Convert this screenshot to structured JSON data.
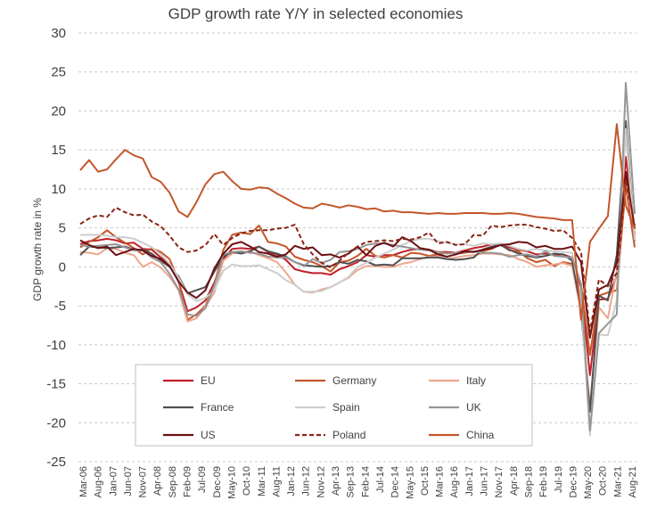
{
  "chart_data": {
    "type": "line",
    "title": "GDP growth rate Y/Y in selected economies",
    "xlabel": "",
    "ylabel": "GDP growth rate in %",
    "ylim": [
      -25,
      30
    ],
    "yticks": [
      30,
      25,
      20,
      15,
      10,
      5,
      0,
      -5,
      -10,
      -15,
      -20,
      -25
    ],
    "grid": "horizontal dashed",
    "legend_position": "bottom-center inside plot, 3 columns",
    "x": [
      "Mar-06",
      "Jun-06",
      "Sep-06",
      "Dec-06",
      "Mar-07",
      "Jun-07",
      "Sep-07",
      "Dec-07",
      "Mar-08",
      "Jun-08",
      "Sep-08",
      "Dec-08",
      "Mar-09",
      "Jun-09",
      "Sep-09",
      "Dec-09",
      "Mar-10",
      "Jun-10",
      "Sep-10",
      "Dec-10",
      "Mar-11",
      "Jun-11",
      "Sep-11",
      "Dec-11",
      "Mar-12",
      "Jun-12",
      "Sep-12",
      "Dec-12",
      "Mar-13",
      "Jun-13",
      "Sep-13",
      "Dec-13",
      "Mar-14",
      "Jun-14",
      "Sep-14",
      "Dec-14",
      "Mar-15",
      "Jun-15",
      "Sep-15",
      "Dec-15",
      "Mar-16",
      "Jun-16",
      "Sep-16",
      "Dec-16",
      "Mar-17",
      "Jun-17",
      "Sep-17",
      "Dec-17",
      "Mar-18",
      "Jun-18",
      "Sep-18",
      "Dec-18",
      "Mar-19",
      "Jun-19",
      "Sep-19",
      "Dec-19",
      "Mar-20",
      "Jun-20",
      "Sep-20",
      "Dec-20",
      "Mar-21",
      "Jun-21",
      "Sep-21"
    ],
    "x_tick_labels": [
      "Mar-06",
      "Aug-06",
      "Jan-07",
      "Jun-07",
      "Nov-07",
      "Apr-08",
      "Sep-08",
      "Feb-09",
      "Jul-09",
      "Dec-09",
      "May-10",
      "Oct-10",
      "Mar-11",
      "Aug-11",
      "Jan-12",
      "Jun-12",
      "Nov-12",
      "Apr-13",
      "Sep-13",
      "Feb-14",
      "Jul-14",
      "Dec-14",
      "May-15",
      "Oct-15",
      "Mar-16",
      "Aug-16",
      "Jan-17",
      "Jun-17",
      "Nov-17",
      "Apr-18",
      "Sep-18",
      "Feb-19",
      "Jul-19",
      "Dec-19",
      "May-20",
      "Oct-20",
      "Mar-21",
      "Aug-21"
    ],
    "series": [
      {
        "name": "EU",
        "color": "#c0202a",
        "dash": "solid",
        "values": [
          2.9,
          3.3,
          3.4,
          3.6,
          3.4,
          3.0,
          3.1,
          2.3,
          2.2,
          1.2,
          0.4,
          -1.9,
          -5.7,
          -5.2,
          -4.3,
          -2.0,
          1.0,
          2.3,
          2.4,
          2.3,
          2.6,
          1.9,
          1.6,
          0.9,
          -0.3,
          -0.6,
          -0.8,
          -0.8,
          -1.0,
          -0.3,
          0.1,
          0.6,
          1.5,
          1.3,
          1.5,
          1.5,
          1.9,
          2.2,
          2.3,
          2.2,
          1.9,
          1.9,
          1.8,
          2.1,
          2.4,
          2.6,
          2.9,
          2.9,
          2.5,
          2.2,
          2.0,
          1.6,
          1.7,
          1.5,
          1.6,
          1.2,
          -2.6,
          -13.9,
          -4.2,
          -4.1,
          -1.1,
          14.1,
          4.1
        ]
      },
      {
        "name": "Germany",
        "color": "#c5562a",
        "dash": "solid",
        "values": [
          2.5,
          3.2,
          3.8,
          4.7,
          3.8,
          3.1,
          2.4,
          1.6,
          2.4,
          1.9,
          1.0,
          -1.8,
          -6.8,
          -6.1,
          -5.0,
          -2.3,
          2.2,
          4.1,
          4.4,
          4.2,
          5.3,
          3.2,
          3.0,
          2.6,
          1.3,
          0.9,
          0.6,
          0.1,
          -0.6,
          0.6,
          0.8,
          1.4,
          2.3,
          1.4,
          1.2,
          1.5,
          1.2,
          1.8,
          1.7,
          1.4,
          1.6,
          1.8,
          1.7,
          1.8,
          2.0,
          2.0,
          2.3,
          2.9,
          2.1,
          2.0,
          1.1,
          0.6,
          0.9,
          0.1,
          0.6,
          0.4,
          -2.2,
          -11.3,
          -3.7,
          -3.3,
          -3.0,
          10.4,
          2.5
        ]
      },
      {
        "name": "Italy",
        "color": "#efa58d",
        "dash": "solid",
        "values": [
          1.9,
          1.8,
          1.6,
          2.4,
          2.3,
          1.8,
          1.5,
          0.0,
          0.6,
          -0.1,
          -1.3,
          -3.0,
          -7.0,
          -6.6,
          -5.1,
          -3.3,
          0.8,
          1.7,
          1.9,
          2.0,
          1.5,
          1.1,
          0.6,
          -0.7,
          -2.3,
          -3.2,
          -3.3,
          -2.9,
          -2.6,
          -2.0,
          -1.4,
          -0.4,
          0.1,
          0.1,
          0.0,
          0.0,
          0.4,
          0.6,
          1.0,
          1.3,
          1.3,
          1.0,
          1.2,
          1.4,
          1.5,
          1.7,
          1.7,
          1.6,
          1.5,
          1.0,
          0.6,
          0.0,
          0.2,
          0.3,
          0.5,
          0.1,
          -5.7,
          -17.9,
          -5.2,
          -6.6,
          -0.6,
          17.2,
          3.9
        ]
      },
      {
        "name": "France",
        "color": "#505050",
        "dash": "solid",
        "values": [
          1.5,
          2.6,
          2.5,
          2.4,
          2.5,
          2.6,
          2.2,
          2.2,
          1.7,
          0.8,
          0.0,
          -1.2,
          -3.4,
          -3.0,
          -2.6,
          -0.6,
          1.3,
          1.9,
          1.7,
          2.0,
          2.6,
          2.0,
          1.7,
          1.3,
          0.6,
          0.2,
          0.1,
          0.0,
          0.1,
          0.6,
          0.4,
          0.9,
          0.7,
          0.2,
          0.3,
          0.2,
          1.1,
          1.1,
          1.1,
          1.2,
          1.2,
          1.0,
          0.9,
          1.0,
          1.2,
          2.2,
          2.6,
          2.8,
          2.2,
          1.7,
          1.4,
          1.2,
          1.4,
          1.7,
          1.6,
          0.8,
          -5.5,
          -18.6,
          -3.7,
          -4.3,
          1.5,
          18.7,
          3.3
        ]
      },
      {
        "name": "Spain",
        "color": "#cdcdcd",
        "dash": "solid",
        "values": [
          4.1,
          4.1,
          4.1,
          4.0,
          3.8,
          3.8,
          3.6,
          3.1,
          2.5,
          1.6,
          0.4,
          -1.4,
          -3.5,
          -4.4,
          -4.0,
          -3.0,
          -0.5,
          0.3,
          0.1,
          0.1,
          0.2,
          -0.3,
          -0.8,
          -1.7,
          -2.3,
          -3.2,
          -3.2,
          -3.1,
          -2.6,
          -2.0,
          -1.3,
          0.0,
          0.5,
          1.2,
          1.7,
          2.2,
          2.8,
          3.3,
          3.6,
          3.6,
          3.3,
          3.1,
          2.9,
          2.9,
          2.7,
          3.0,
          2.9,
          3.0,
          2.7,
          2.3,
          2.1,
          2.3,
          2.1,
          2.0,
          1.9,
          1.8,
          -4.2,
          -21.6,
          -8.7,
          -8.8,
          -4.3,
          17.7,
          3.4
        ]
      },
      {
        "name": "UK",
        "color": "#969696",
        "dash": "solid",
        "values": [
          2.8,
          2.6,
          2.7,
          2.8,
          2.9,
          2.5,
          2.1,
          2.1,
          1.2,
          0.6,
          -0.9,
          -2.9,
          -6.1,
          -6.3,
          -5.3,
          -2.4,
          1.6,
          1.9,
          2.0,
          1.8,
          1.7,
          1.3,
          1.2,
          1.2,
          0.6,
          0.1,
          1.0,
          0.5,
          0.9,
          1.9,
          2.0,
          2.3,
          2.8,
          3.0,
          3.0,
          2.8,
          2.6,
          2.4,
          2.2,
          2.1,
          1.9,
          1.7,
          1.8,
          1.9,
          2.0,
          1.8,
          1.8,
          1.7,
          1.3,
          1.5,
          1.6,
          1.3,
          2.0,
          1.4,
          1.3,
          1.2,
          -2.2,
          -21.0,
          -8.5,
          -7.3,
          -6.1,
          23.6,
          6.8
        ]
      },
      {
        "name": "US",
        "color": "#6b0f14",
        "dash": "solid",
        "values": [
          3.4,
          2.8,
          2.4,
          2.6,
          1.5,
          1.9,
          2.3,
          2.1,
          1.4,
          1.0,
          0.1,
          -1.9,
          -3.3,
          -4.0,
          -3.0,
          -0.2,
          1.7,
          2.9,
          3.2,
          2.6,
          1.9,
          1.7,
          1.3,
          1.6,
          2.7,
          2.3,
          2.5,
          1.5,
          1.6,
          1.2,
          1.7,
          2.6,
          1.5,
          2.7,
          3.1,
          2.6,
          3.8,
          3.3,
          2.4,
          2.2,
          1.6,
          1.3,
          1.6,
          2.0,
          1.9,
          2.2,
          2.4,
          2.8,
          2.9,
          3.2,
          3.1,
          2.5,
          2.7,
          2.3,
          2.3,
          2.6,
          0.6,
          -9.1,
          -2.9,
          -2.3,
          0.5,
          12.2,
          4.9
        ]
      },
      {
        "name": "Poland",
        "color": "#8a2415",
        "dash": "dashed",
        "values": [
          5.5,
          6.2,
          6.6,
          6.4,
          7.6,
          7.0,
          6.6,
          6.7,
          5.8,
          5.2,
          4.0,
          2.5,
          1.9,
          2.1,
          2.8,
          4.2,
          2.8,
          3.7,
          4.3,
          4.6,
          4.7,
          4.7,
          4.9,
          5.0,
          5.4,
          2.9,
          1.6,
          0.5,
          -0.1,
          0.8,
          1.8,
          2.6,
          3.2,
          3.3,
          3.4,
          3.3,
          3.6,
          3.5,
          3.8,
          4.4,
          3.0,
          3.2,
          2.8,
          2.9,
          4.1,
          4.0,
          5.3,
          5.1,
          5.3,
          5.4,
          5.4,
          5.1,
          4.9,
          4.6,
          4.7,
          3.7,
          1.9,
          -8.4,
          -1.6,
          -2.5,
          -0.8,
          11.2,
          5.3
        ]
      },
      {
        "name": "China",
        "color": "#c3562b",
        "dash": "solid",
        "values": [
          12.4,
          13.7,
          12.2,
          12.5,
          13.8,
          15.0,
          14.3,
          13.9,
          11.5,
          10.9,
          9.5,
          7.1,
          6.4,
          8.3,
          10.6,
          11.9,
          12.2,
          11.0,
          10.0,
          9.9,
          10.2,
          10.1,
          9.4,
          8.8,
          8.1,
          7.6,
          7.5,
          8.1,
          7.9,
          7.6,
          7.9,
          7.7,
          7.4,
          7.5,
          7.1,
          7.2,
          7.0,
          7.0,
          6.9,
          6.8,
          6.9,
          6.8,
          6.8,
          6.9,
          6.9,
          6.9,
          6.8,
          6.8,
          6.9,
          6.8,
          6.6,
          6.4,
          6.3,
          6.2,
          6.0,
          6.0,
          -6.8,
          3.2,
          4.9,
          6.5,
          18.3,
          7.9,
          4.9
        ]
      }
    ]
  }
}
